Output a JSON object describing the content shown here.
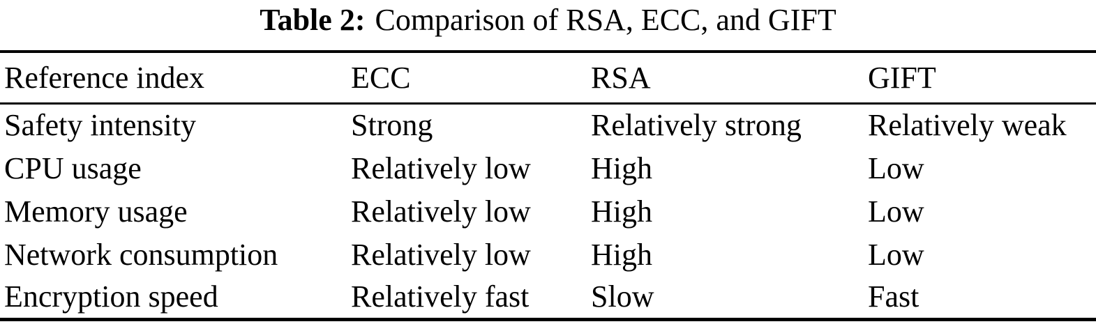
{
  "caption": {
    "label": "Table 2:",
    "title": "Comparison of RSA, ECC, and GIFT"
  },
  "table": {
    "columns": [
      "Reference index",
      "ECC",
      "RSA",
      "GIFT"
    ],
    "rows": [
      [
        "Safety intensity",
        "Strong",
        "Relatively strong",
        "Relatively weak"
      ],
      [
        "CPU usage",
        "Relatively low",
        "High",
        "Low"
      ],
      [
        "Memory usage",
        "Relatively low",
        "High",
        "Low"
      ],
      [
        "Network consumption",
        "Relatively low",
        "High",
        "Low"
      ],
      [
        "Encryption speed",
        "Relatively fast",
        "Slow",
        "Fast"
      ]
    ]
  },
  "colors": {
    "background": "#ffffff",
    "text": "#000000",
    "rule": "#000000"
  },
  "chart_data": {
    "type": "table",
    "title": "Table 2: Comparison of RSA, ECC, and GIFT",
    "columns": [
      "Reference index",
      "ECC",
      "RSA",
      "GIFT"
    ],
    "rows": [
      [
        "Safety intensity",
        "Strong",
        "Relatively strong",
        "Relatively weak"
      ],
      [
        "CPU usage",
        "Relatively low",
        "High",
        "Low"
      ],
      [
        "Memory usage",
        "Relatively low",
        "High",
        "Low"
      ],
      [
        "Network consumption",
        "Relatively low",
        "High",
        "Low"
      ],
      [
        "Encryption speed",
        "Relatively fast",
        "Slow",
        "Fast"
      ]
    ]
  }
}
